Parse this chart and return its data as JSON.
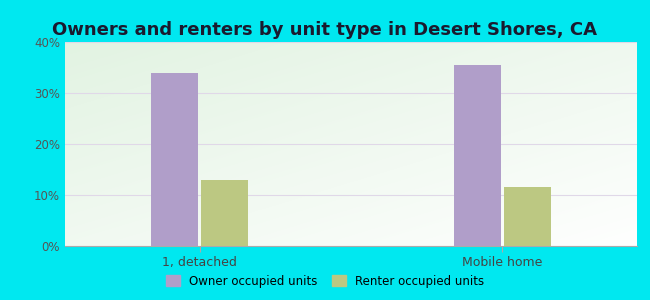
{
  "title": "Owners and renters by unit type in Desert Shores, CA",
  "categories": [
    "1, detached",
    "Mobile home"
  ],
  "owner_values": [
    34.0,
    35.5
  ],
  "renter_values": [
    13.0,
    11.5
  ],
  "owner_color": "#b09ec9",
  "renter_color": "#bcc882",
  "owner_label": "Owner occupied units",
  "renter_label": "Renter occupied units",
  "ylim": [
    0,
    40
  ],
  "yticks": [
    0,
    10,
    20,
    30,
    40
  ],
  "ytick_labels": [
    "0%",
    "10%",
    "20%",
    "30%",
    "40%"
  ],
  "background_outer": "#00e8f0",
  "title_fontsize": 13,
  "bar_width": 0.28,
  "grid_color": "#e0d8e8"
}
